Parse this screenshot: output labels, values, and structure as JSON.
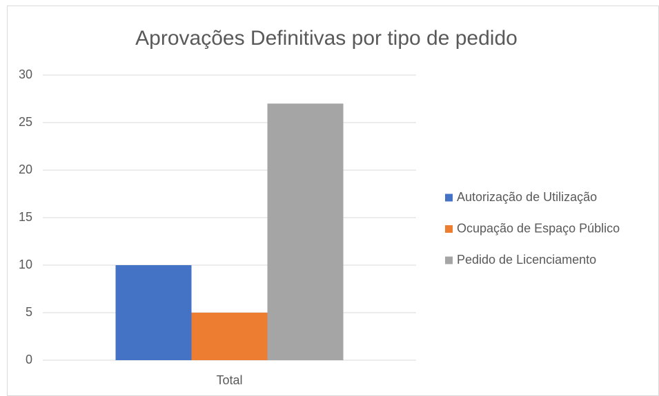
{
  "chart_data": {
    "type": "bar",
    "title": "Aprovações Definitivas por tipo de pedido",
    "categories": [
      "Total"
    ],
    "series": [
      {
        "name": "Autorização de Utilização",
        "color": "#4472c4",
        "values": [
          10
        ]
      },
      {
        "name": "Ocupação de Espaço Público",
        "color": "#ed7d31",
        "values": [
          5
        ]
      },
      {
        "name": "Pedido de Licenciamento",
        "color": "#a5a5a5",
        "values": [
          27
        ]
      }
    ],
    "ylim": [
      0,
      30
    ],
    "yticks": [
      0,
      5,
      10,
      15,
      20,
      25,
      30
    ],
    "grid": true,
    "legend": "right"
  }
}
